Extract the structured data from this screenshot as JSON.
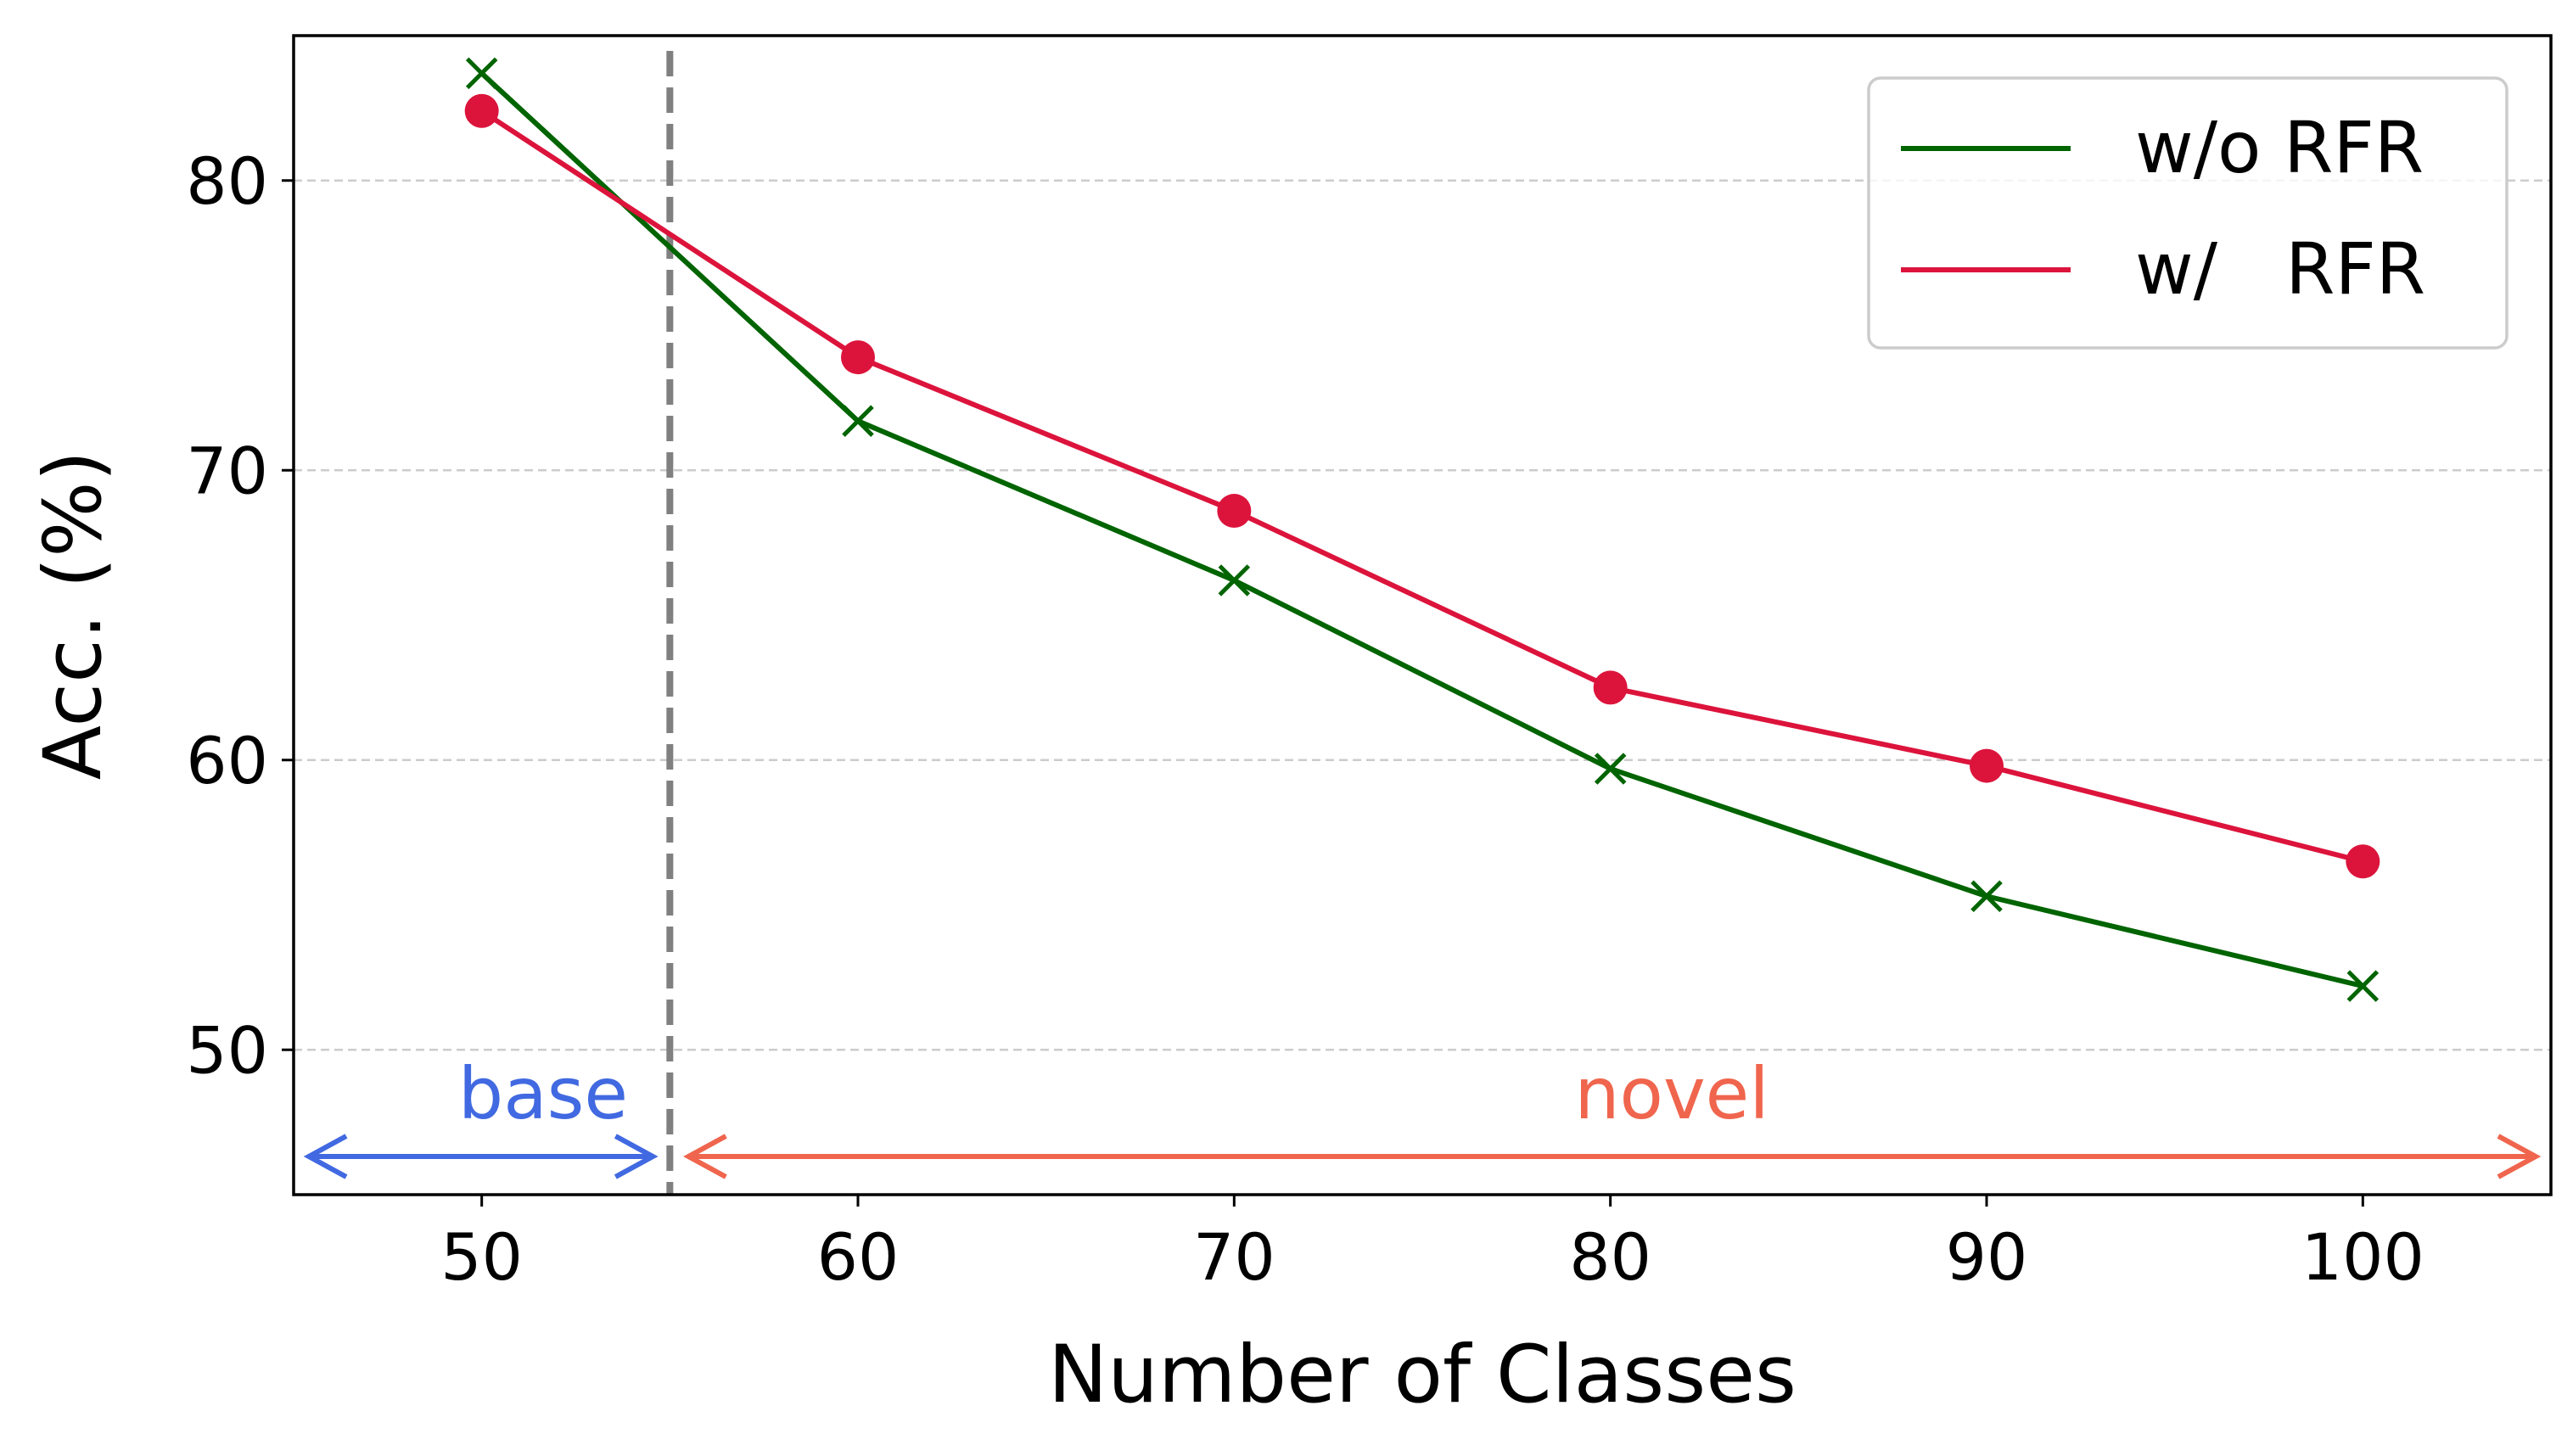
{
  "chart_data": {
    "type": "line",
    "title": "",
    "xlabel": "Number of Classes",
    "ylabel": "Acc. (%)",
    "x": [
      50,
      60,
      70,
      80,
      90,
      100
    ],
    "x_ticks": [
      "50",
      "60",
      "70",
      "80",
      "90",
      "100"
    ],
    "y_ticks": [
      "50",
      "60",
      "70",
      "80"
    ],
    "xlim": [
      45,
      105
    ],
    "ylim": [
      45,
      85
    ],
    "grid": "horizontal, dashed",
    "legend_position": "top-right",
    "series": [
      {
        "name": "w/o RFR",
        "values": [
          83.7,
          71.7,
          66.2,
          59.7,
          55.3,
          52.2
        ],
        "color": "#006400",
        "marker": "x"
      },
      {
        "name": "w/   RFR",
        "values": [
          82.4,
          73.9,
          68.6,
          62.5,
          59.8,
          56.5
        ],
        "color": "#dc143c",
        "marker": "o"
      }
    ],
    "annotations": {
      "divider_x": 55,
      "divider_color": "#808080",
      "base": {
        "label": "base",
        "color": "#4169e1",
        "from": 45,
        "to": 55
      },
      "novel": {
        "label": "novel",
        "color": "#f0654d",
        "from": 55,
        "to": 105
      }
    }
  }
}
